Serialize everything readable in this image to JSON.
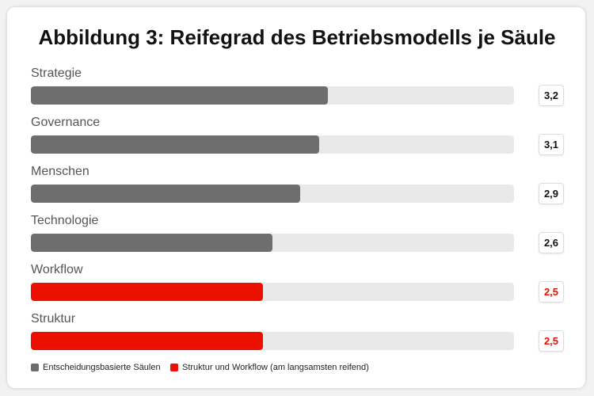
{
  "chart_data": {
    "type": "bar",
    "orientation": "horizontal",
    "title": "Abbildung 3: Reifegrad des Betriebsmodells je Säule",
    "categories": [
      "Strategie",
      "Governance",
      "Menschen",
      "Technologie",
      "Workflow",
      "Struktur"
    ],
    "values": [
      3.2,
      3.1,
      2.9,
      2.6,
      2.5,
      2.5
    ],
    "value_labels": [
      "3,2",
      "3,1",
      "2,9",
      "2,6",
      "2,5",
      "2,5"
    ],
    "groups": [
      "decision",
      "decision",
      "decision",
      "decision",
      "slow",
      "slow"
    ],
    "xlim": [
      0,
      5.2
    ],
    "grid": false,
    "legend_position": "bottom-left",
    "legend": [
      {
        "key": "decision",
        "label": "Entscheidungsbasierte Säulen",
        "color": "#6e6e6e"
      },
      {
        "key": "slow",
        "label": "Struktur und Workflow (am langsamsten reifend)",
        "color": "#eb1000"
      }
    ],
    "colors": {
      "track": "#e9e9e9",
      "decision_text": "#111111",
      "slow_text": "#eb1000"
    }
  }
}
